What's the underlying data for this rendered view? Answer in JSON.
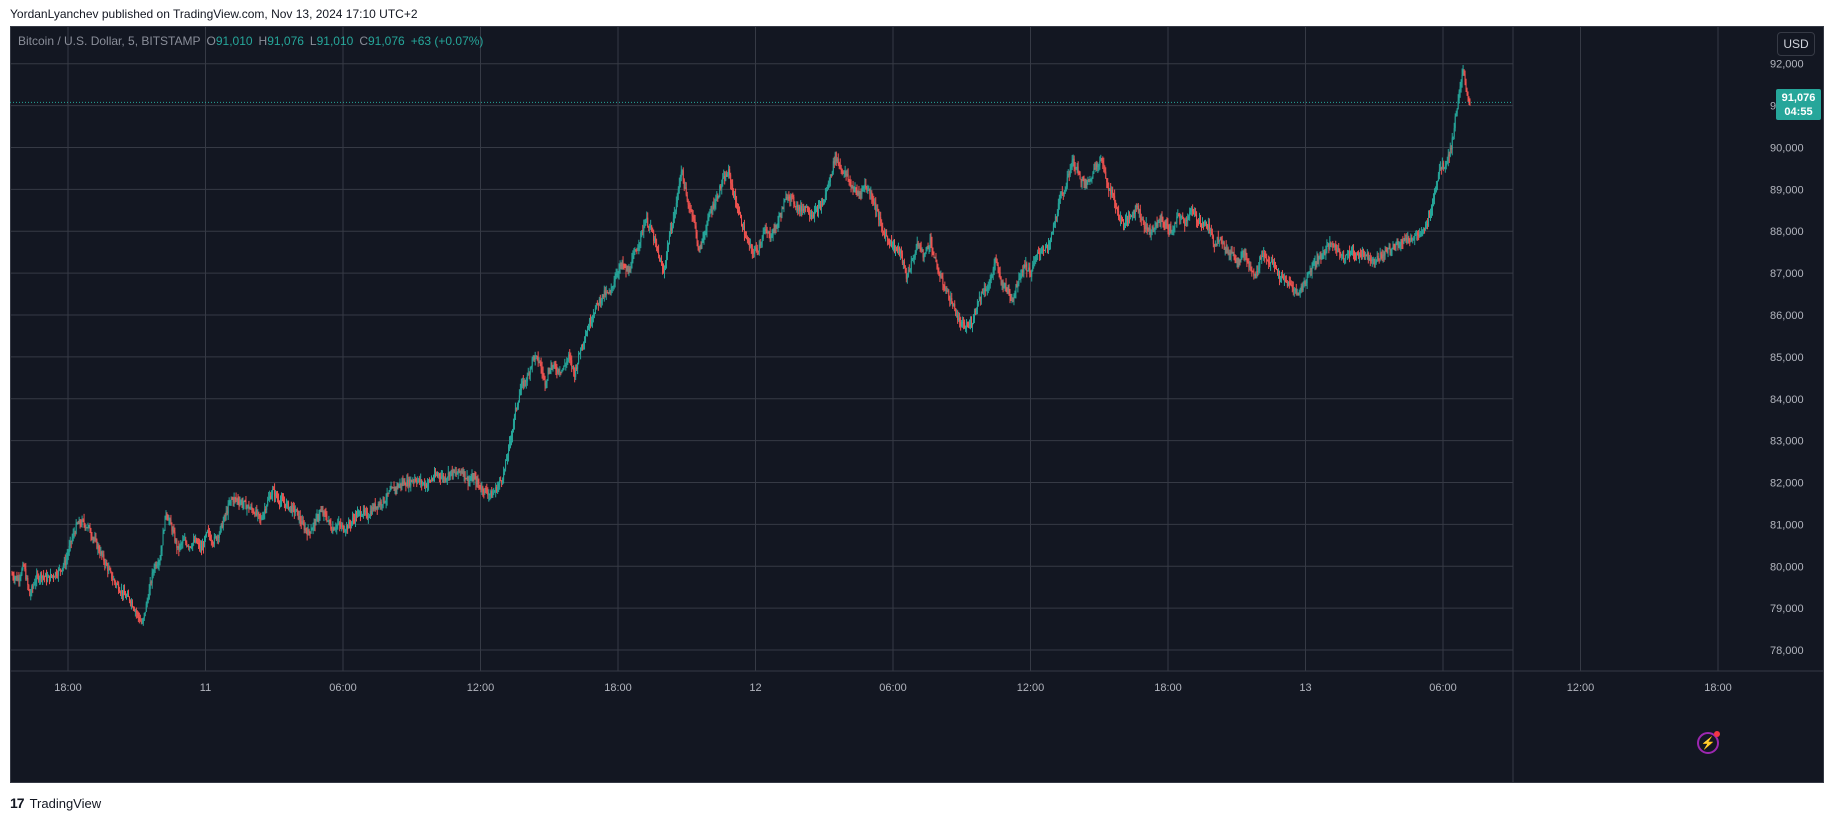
{
  "header": {
    "publisher_line": "YordanLyanchev published on TradingView.com, Nov 13, 2024 17:10 UTC+2"
  },
  "legend": {
    "symbol": "Bitcoin / U.S. Dollar, 5, BITSTAMP",
    "open_label": "O",
    "open": "91,010",
    "high_label": "H",
    "high": "91,076",
    "low_label": "L",
    "low": "91,010",
    "close_label": "C",
    "close": "91,076",
    "change": "+63 (+0.07%)"
  },
  "currency": "USD",
  "price_tag": {
    "price": "91,076",
    "countdown": "04:55"
  },
  "footer": {
    "brand": "TradingView"
  },
  "colors": {
    "background": "#131722",
    "grid": "#363a45",
    "up": "#26a69a",
    "down": "#ef5350",
    "text": "#b2b5be"
  },
  "chart_data": {
    "type": "candlestick",
    "ylim": [
      77500,
      92900
    ],
    "y_ticks": [
      "78,000",
      "79,000",
      "80,000",
      "81,000",
      "82,000",
      "83,000",
      "84,000",
      "85,000",
      "86,000",
      "87,000",
      "88,000",
      "89,000",
      "90,000",
      "91,000",
      "92,000"
    ],
    "x_ticks": [
      "18:00",
      "11",
      "06:00",
      "12:00",
      "18:00",
      "12",
      "06:00",
      "12:00",
      "18:00",
      "13",
      "06:00",
      "12:00",
      "18:00"
    ],
    "last_price": 91076,
    "price_path": [
      [
        0,
        79800
      ],
      [
        6,
        79700
      ],
      [
        12,
        80000
      ],
      [
        18,
        79300
      ],
      [
        24,
        79700
      ],
      [
        30,
        79800
      ],
      [
        36,
        79700
      ],
      [
        42,
        79800
      ],
      [
        48,
        79900
      ],
      [
        54,
        80100
      ],
      [
        60,
        80600
      ],
      [
        66,
        81000
      ],
      [
        72,
        81050
      ],
      [
        78,
        80900
      ],
      [
        84,
        80600
      ],
      [
        90,
        80300
      ],
      [
        96,
        80000
      ],
      [
        102,
        79700
      ],
      [
        108,
        79500
      ],
      [
        114,
        79300
      ],
      [
        120,
        79200
      ],
      [
        126,
        78900
      ],
      [
        132,
        78600
      ],
      [
        138,
        79300
      ],
      [
        144,
        80000
      ],
      [
        150,
        80200
      ],
      [
        156,
        81300
      ],
      [
        162,
        80900
      ],
      [
        168,
        80400
      ],
      [
        174,
        80600
      ],
      [
        180,
        80500
      ],
      [
        186,
        80600
      ],
      [
        192,
        80400
      ],
      [
        198,
        80800
      ],
      [
        204,
        80600
      ],
      [
        210,
        80800
      ],
      [
        216,
        81200
      ],
      [
        222,
        81600
      ],
      [
        228,
        81600
      ],
      [
        234,
        81500
      ],
      [
        240,
        81400
      ],
      [
        246,
        81300
      ],
      [
        252,
        81100
      ],
      [
        258,
        81500
      ],
      [
        264,
        81800
      ],
      [
        270,
        81600
      ],
      [
        276,
        81500
      ],
      [
        282,
        81400
      ],
      [
        288,
        81300
      ],
      [
        294,
        81000
      ],
      [
        300,
        80800
      ],
      [
        306,
        81000
      ],
      [
        312,
        81300
      ],
      [
        318,
        81200
      ],
      [
        324,
        80900
      ],
      [
        330,
        81000
      ],
      [
        336,
        80900
      ],
      [
        342,
        81000
      ],
      [
        348,
        81200
      ],
      [
        354,
        81300
      ],
      [
        360,
        81200
      ],
      [
        366,
        81400
      ],
      [
        372,
        81500
      ],
      [
        378,
        81600
      ],
      [
        384,
        81800
      ],
      [
        390,
        81900
      ],
      [
        396,
        82000
      ],
      [
        402,
        82000
      ],
      [
        408,
        82100
      ],
      [
        414,
        82000
      ],
      [
        420,
        81950
      ],
      [
        426,
        82100
      ],
      [
        432,
        82200
      ],
      [
        438,
        82100
      ],
      [
        444,
        82250
      ],
      [
        450,
        82200
      ],
      [
        456,
        82300
      ],
      [
        462,
        82050
      ],
      [
        468,
        82100
      ],
      [
        474,
        81900
      ],
      [
        480,
        81800
      ],
      [
        486,
        81700
      ],
      [
        492,
        81900
      ],
      [
        498,
        82200
      ],
      [
        504,
        82900
      ],
      [
        510,
        83700
      ],
      [
        516,
        84300
      ],
      [
        522,
        84500
      ],
      [
        528,
        85000
      ],
      [
        534,
        84900
      ],
      [
        540,
        84400
      ],
      [
        546,
        84800
      ],
      [
        552,
        84700
      ],
      [
        558,
        84700
      ],
      [
        564,
        85000
      ],
      [
        570,
        84600
      ],
      [
        576,
        85200
      ],
      [
        582,
        85600
      ],
      [
        588,
        86000
      ],
      [
        594,
        86300
      ],
      [
        600,
        86500
      ],
      [
        606,
        86500
      ],
      [
        612,
        87000
      ],
      [
        618,
        87200
      ],
      [
        624,
        87000
      ],
      [
        630,
        87400
      ],
      [
        636,
        87800
      ],
      [
        642,
        88300
      ],
      [
        648,
        88000
      ],
      [
        654,
        87500
      ],
      [
        660,
        87000
      ],
      [
        666,
        87900
      ],
      [
        672,
        88500
      ],
      [
        678,
        89500
      ],
      [
        684,
        88700
      ],
      [
        690,
        88400
      ],
      [
        696,
        87500
      ],
      [
        702,
        88000
      ],
      [
        708,
        88500
      ],
      [
        714,
        88800
      ],
      [
        720,
        89200
      ],
      [
        726,
        89400
      ],
      [
        732,
        88800
      ],
      [
        738,
        88300
      ],
      [
        744,
        87800
      ],
      [
        750,
        87500
      ],
      [
        756,
        87600
      ],
      [
        762,
        88000
      ],
      [
        768,
        87900
      ],
      [
        774,
        88100
      ],
      [
        780,
        88500
      ],
      [
        786,
        88900
      ],
      [
        792,
        88700
      ],
      [
        798,
        88500
      ],
      [
        804,
        88600
      ],
      [
        810,
        88400
      ],
      [
        816,
        88500
      ],
      [
        822,
        88700
      ],
      [
        828,
        89200
      ],
      [
        834,
        89800
      ],
      [
        840,
        89500
      ],
      [
        846,
        89300
      ],
      [
        852,
        89000
      ],
      [
        858,
        88900
      ],
      [
        864,
        89100
      ],
      [
        870,
        88900
      ],
      [
        876,
        88500
      ],
      [
        882,
        88000
      ],
      [
        888,
        87800
      ],
      [
        894,
        87600
      ],
      [
        900,
        87500
      ],
      [
        906,
        86900
      ],
      [
        912,
        87300
      ],
      [
        918,
        87700
      ],
      [
        924,
        87400
      ],
      [
        930,
        87800
      ],
      [
        936,
        87200
      ],
      [
        942,
        86800
      ],
      [
        948,
        86500
      ],
      [
        954,
        86200
      ],
      [
        960,
        85800
      ],
      [
        966,
        85700
      ],
      [
        972,
        85800
      ],
      [
        978,
        86300
      ],
      [
        984,
        86600
      ],
      [
        990,
        86700
      ],
      [
        996,
        87300
      ],
      [
        1002,
        86800
      ],
      [
        1008,
        86600
      ],
      [
        1014,
        86400
      ],
      [
        1020,
        86900
      ],
      [
        1026,
        87200
      ],
      [
        1032,
        87000
      ],
      [
        1038,
        87400
      ],
      [
        1044,
        87600
      ],
      [
        1050,
        87600
      ],
      [
        1056,
        88200
      ],
      [
        1062,
        88800
      ],
      [
        1068,
        89100
      ],
      [
        1074,
        89700
      ],
      [
        1080,
        89400
      ],
      [
        1086,
        89100
      ],
      [
        1092,
        89200
      ],
      [
        1098,
        89600
      ],
      [
        1104,
        89700
      ],
      [
        1110,
        89100
      ],
      [
        1116,
        88800
      ],
      [
        1122,
        88300
      ],
      [
        1128,
        88200
      ],
      [
        1134,
        88400
      ],
      [
        1140,
        88600
      ],
      [
        1146,
        88200
      ],
      [
        1152,
        88000
      ],
      [
        1158,
        88100
      ],
      [
        1164,
        88300
      ],
      [
        1170,
        88100
      ],
      [
        1176,
        88000
      ],
      [
        1182,
        88400
      ],
      [
        1188,
        88200
      ],
      [
        1194,
        88500
      ],
      [
        1200,
        88300
      ],
      [
        1206,
        88200
      ],
      [
        1212,
        88100
      ],
      [
        1218,
        87700
      ],
      [
        1224,
        87900
      ],
      [
        1230,
        87500
      ],
      [
        1236,
        87500
      ],
      [
        1242,
        87300
      ],
      [
        1248,
        87500
      ],
      [
        1254,
        87100
      ],
      [
        1260,
        86900
      ],
      [
        1266,
        87500
      ],
      [
        1272,
        87300
      ],
      [
        1278,
        87200
      ],
      [
        1284,
        86900
      ],
      [
        1290,
        86800
      ],
      [
        1296,
        86700
      ],
      [
        1302,
        86500
      ],
      [
        1308,
        86700
      ],
      [
        1314,
        87000
      ],
      [
        1320,
        87300
      ],
      [
        1326,
        87400
      ],
      [
        1332,
        87600
      ],
      [
        1338,
        87700
      ],
      [
        1344,
        87500
      ],
      [
        1350,
        87400
      ],
      [
        1356,
        87500
      ],
      [
        1362,
        87400
      ],
      [
        1368,
        87500
      ],
      [
        1374,
        87400
      ],
      [
        1380,
        87300
      ],
      [
        1386,
        87400
      ],
      [
        1392,
        87500
      ],
      [
        1398,
        87600
      ],
      [
        1404,
        87700
      ],
      [
        1410,
        87800
      ],
      [
        1416,
        87800
      ],
      [
        1422,
        87900
      ],
      [
        1428,
        87900
      ],
      [
        1434,
        88200
      ],
      [
        1440,
        88800
      ],
      [
        1446,
        89500
      ],
      [
        1452,
        89600
      ],
      [
        1458,
        90000
      ],
      [
        1464,
        91000
      ],
      [
        1470,
        91800
      ],
      [
        1474,
        91300
      ],
      [
        1477,
        91076
      ]
    ]
  }
}
